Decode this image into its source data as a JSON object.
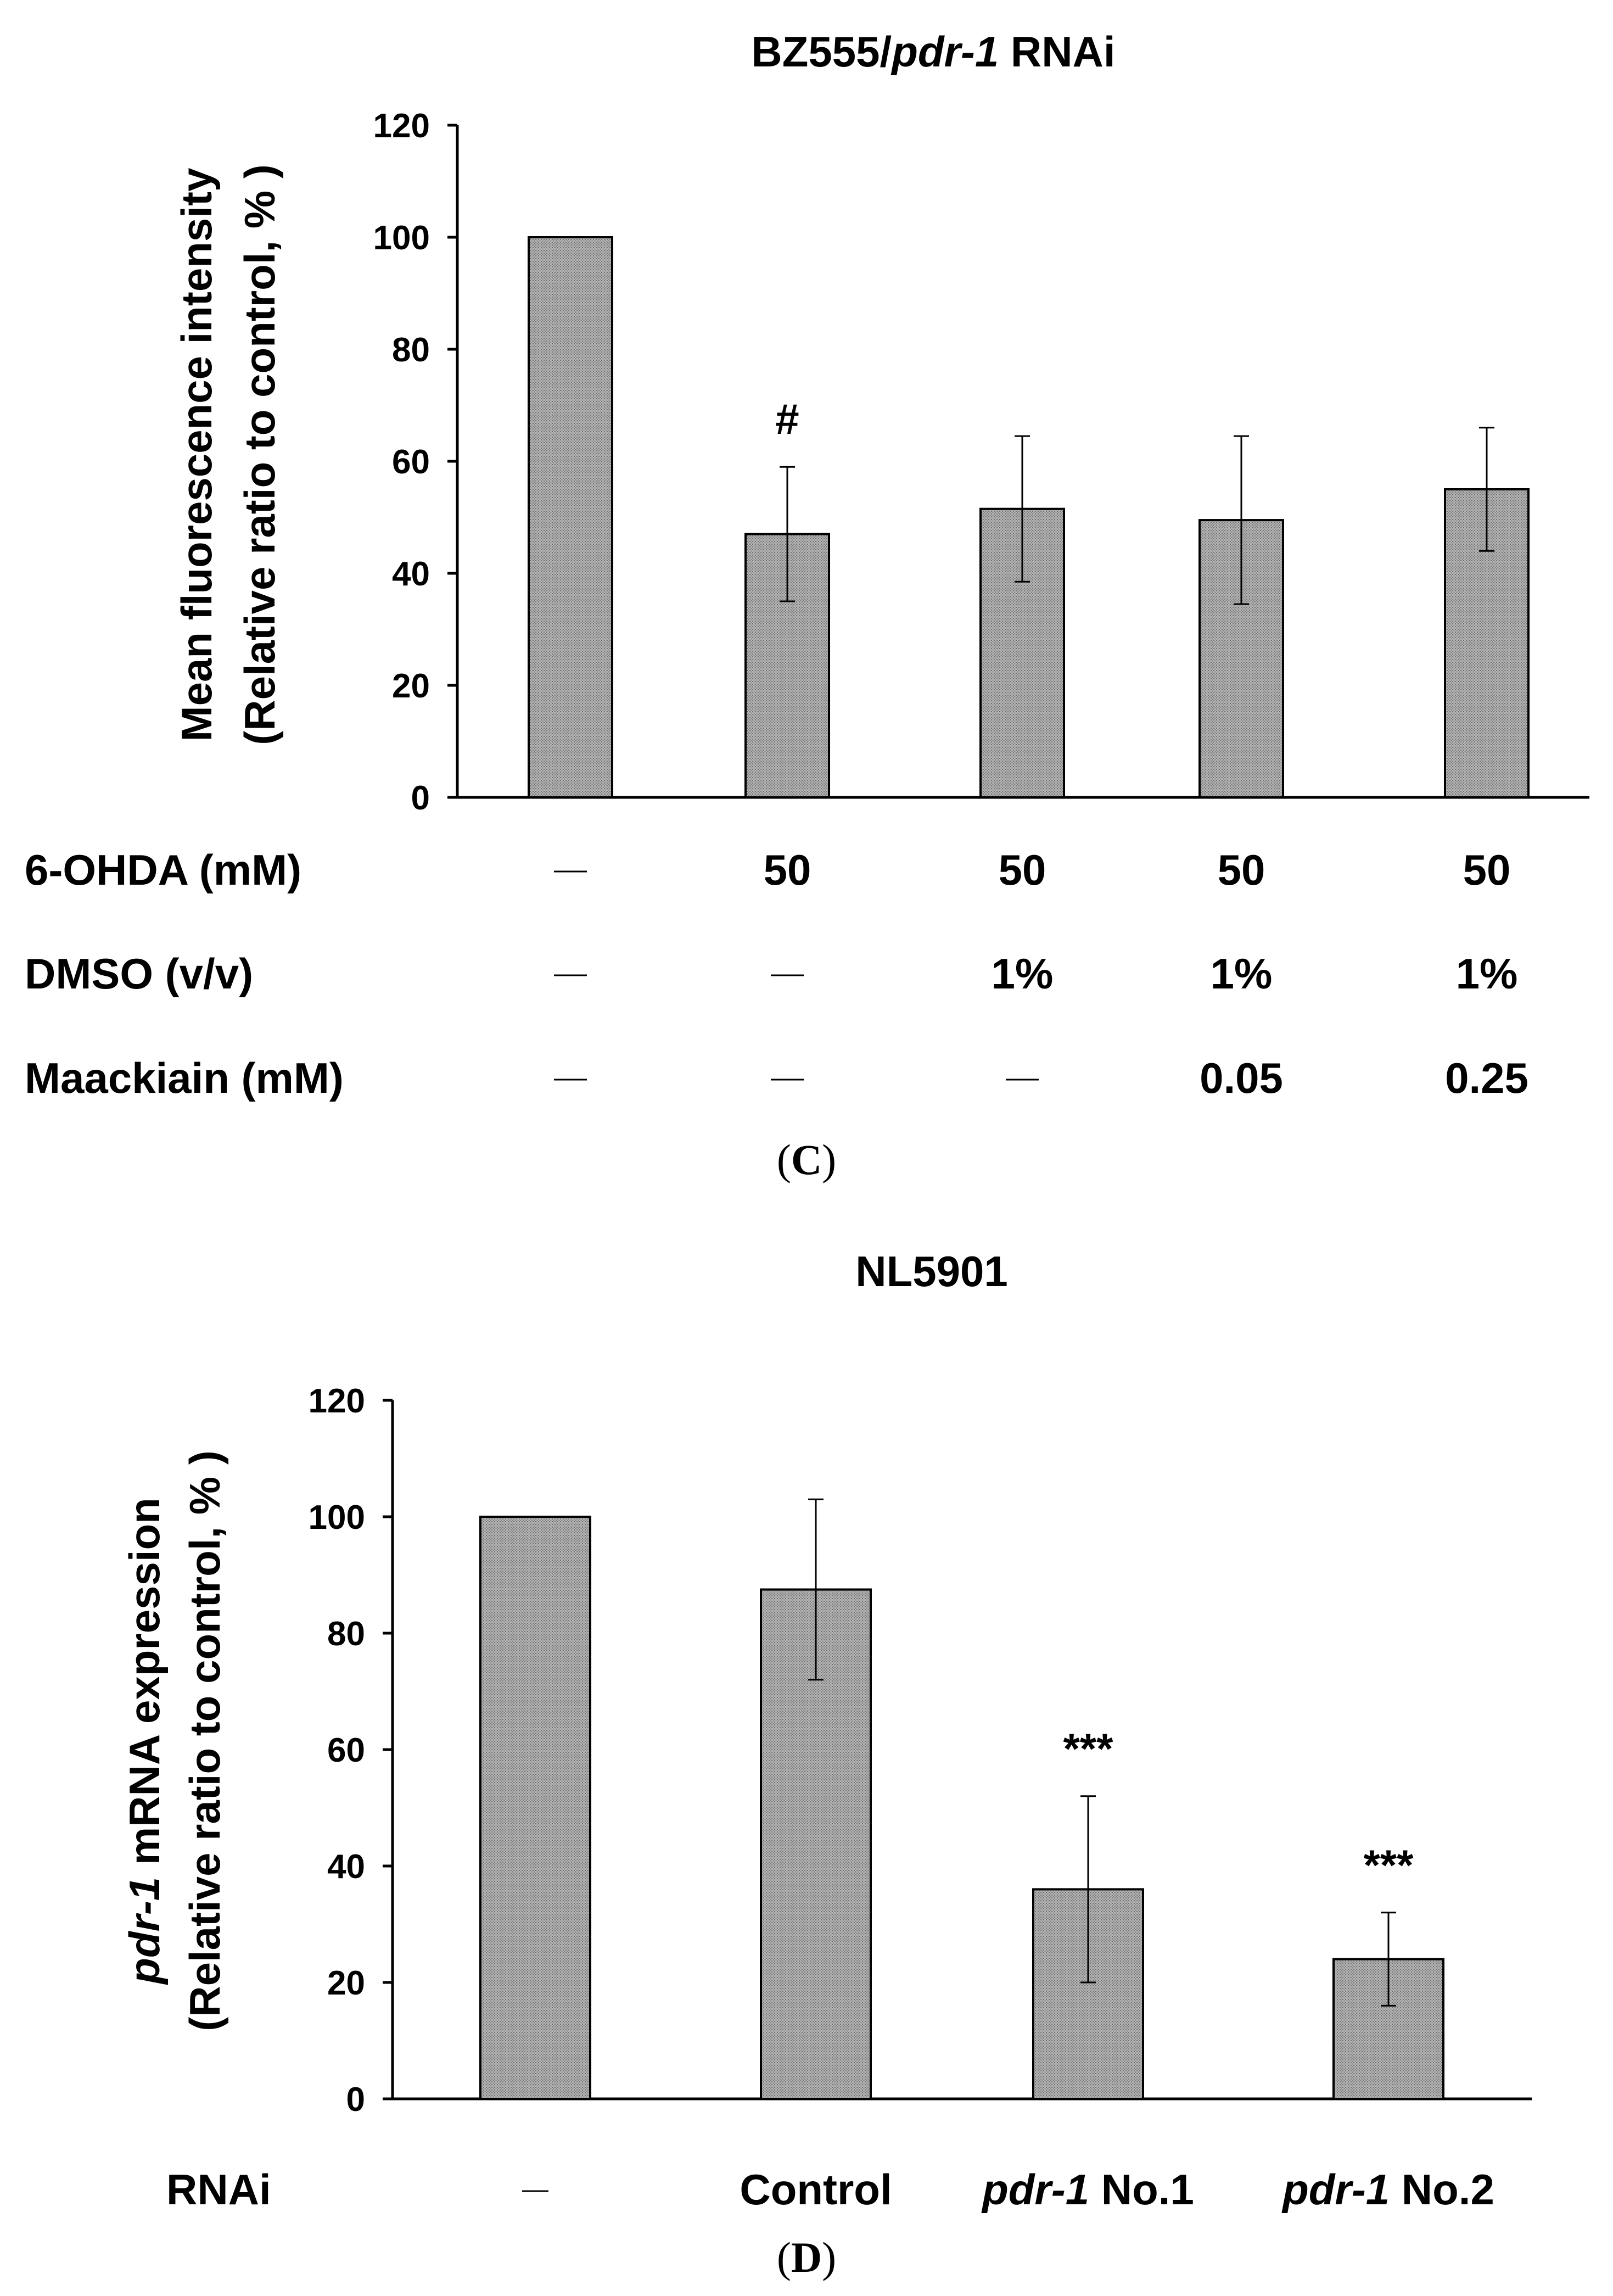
{
  "chart_data": [
    {
      "type": "bar",
      "title_parts": [
        {
          "text": "BZ555/",
          "italic": false
        },
        {
          "text": "pdr-1",
          "italic": true
        },
        {
          "text": " RNAi",
          "italic": false
        }
      ],
      "ylabel_line1_parts": [
        {
          "text": "Mean fluorescence intensity",
          "italic": false
        }
      ],
      "ylabel_line2": "(Relative ratio to control, % )",
      "ylim": [
        0,
        120
      ],
      "yticks": [
        "0",
        "20",
        "40",
        "60",
        "80",
        "100",
        "120"
      ],
      "values": [
        100,
        47,
        51.5,
        49.5,
        55
      ],
      "errors": [
        0,
        12,
        13,
        15,
        11
      ],
      "annotations": [
        "",
        "#",
        "",
        "",
        ""
      ],
      "category_rows": [
        {
          "label": "6-OHDA (mM)",
          "cells": [
            "—",
            "50",
            "50",
            "50",
            "50"
          ]
        },
        {
          "label": "DMSO (v/v)",
          "cells": [
            "—",
            "—",
            "1%",
            "1%",
            "1%"
          ]
        },
        {
          "label": "Maackiain (mM)",
          "cells": [
            "—",
            "—",
            "—",
            "0.05",
            "0.25"
          ]
        }
      ],
      "panel": {
        "open": "(",
        "letter": "C",
        "close": ")"
      }
    },
    {
      "type": "bar",
      "title_parts": [
        {
          "text": "NL5901",
          "italic": false
        }
      ],
      "ylabel_line1_parts": [
        {
          "text": "pdr-1",
          "italic": true
        },
        {
          "text": " mRNA expression",
          "italic": false
        }
      ],
      "ylabel_line2": "(Relative ratio to control, % )",
      "ylim": [
        0,
        120
      ],
      "yticks": [
        "0",
        "20",
        "40",
        "60",
        "80",
        "100",
        "120"
      ],
      "values": [
        100,
        87.5,
        36,
        24
      ],
      "errors": [
        0,
        15.5,
        16,
        8
      ],
      "annotations": [
        "",
        "",
        "***",
        "***"
      ],
      "category_rows": [
        {
          "label": "RNAi",
          "cells": [
            [
              {
                "text": "—",
                "italic": false
              }
            ],
            [
              {
                "text": "Control",
                "italic": false
              }
            ],
            [
              {
                "text": "pdr-1",
                "italic": true
              },
              {
                "text": " No.1",
                "italic": false
              }
            ],
            [
              {
                "text": "pdr-1",
                "italic": true
              },
              {
                "text": " No.2",
                "italic": false
              }
            ]
          ]
        }
      ],
      "panel": {
        "open": "(",
        "letter": "D",
        "close": ")"
      }
    }
  ],
  "colors": {
    "bar_fill": "#a9a9a9",
    "bar_stroke": "#000000",
    "axis": "#000000"
  }
}
